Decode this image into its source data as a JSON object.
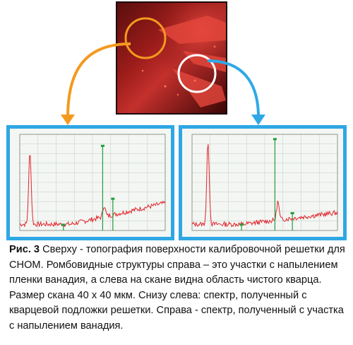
{
  "figure": {
    "label": "Рис. 3",
    "caption": "Сверху - топография поверхности калибровочной решетки для СНОМ. Ромбовидные структуры справа – это участки с напылением пленки ванадия, а слева на скане видна область чистого кварца. Размер скана 40 х 40 мкм. Снизу слева: спектр, полученный с кварцевой подложки решетки. Справа - спектр, полученный с участка с напылением ванадия."
  },
  "colors": {
    "frame_blue": "#2ea7e4",
    "arrow_orange": "#f39a1e",
    "arrow_blue": "#2fa9e6",
    "spectrum_red": "#e0242a",
    "marker_green": "#1f9d3c",
    "grid": "#c9d2c9"
  },
  "spectra": [
    {
      "id": "left",
      "peaks": [
        {
          "x": 0.07,
          "h": 0.76
        },
        {
          "x": 0.58,
          "h": 0.12
        }
      ],
      "baseline_rise": 0.22
    },
    {
      "id": "right",
      "peaks": [
        {
          "x": 0.11,
          "h": 0.86
        },
        {
          "x": 0.59,
          "h": 0.19
        }
      ],
      "baseline_rise": 0.12
    }
  ]
}
